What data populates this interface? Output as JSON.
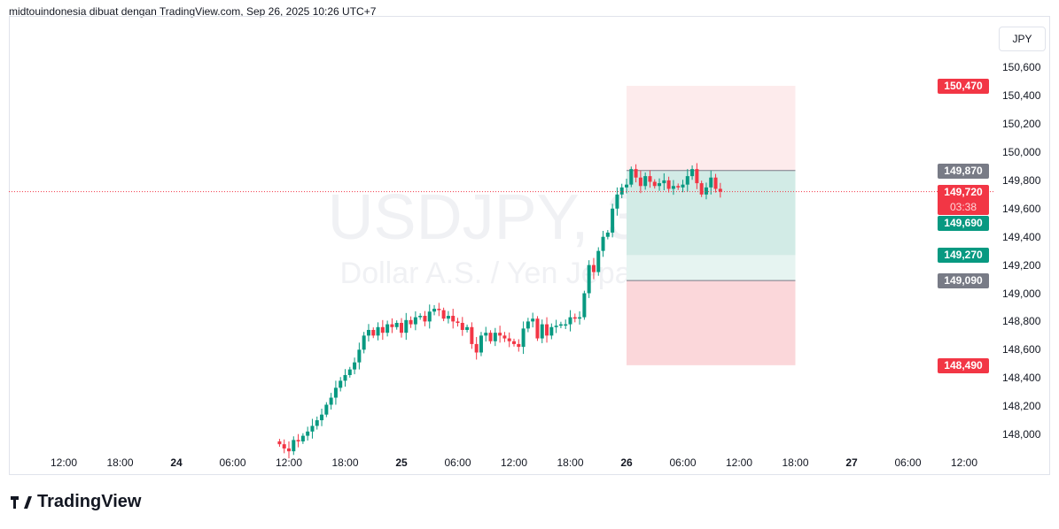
{
  "header": {
    "attribution": "midtouindonesia dibuat dengan TradingView.com, Sep 26, 2025 10:26 UTC+7"
  },
  "watermark": {
    "symbol": "USDJPY, 30",
    "description": "Dollar A.S. / Yen Jepang"
  },
  "currency_button": "JPY",
  "logo": "TradingView",
  "colors": {
    "up": "#089981",
    "down": "#f23645",
    "neutral_label": "#787b86",
    "profit_zone": "#d2ebe6",
    "loss_zone": "#fde2e4"
  },
  "chart_data": {
    "type": "candlestick",
    "symbol": "USDJPY",
    "interval": "30",
    "first_bar_time": "2025-09-24 11:00",
    "closes": [
      147930,
      147900,
      147880,
      147960,
      147950,
      147990,
      148020,
      148060,
      148100,
      148140,
      148210,
      148260,
      148330,
      148380,
      148420,
      148460,
      148510,
      148600,
      148700,
      148740,
      148700,
      148760,
      148720,
      148780,
      148760,
      148790,
      148720,
      148810,
      148780,
      148830,
      148840,
      148800,
      148870,
      148890,
      148880,
      148820,
      148840,
      148800,
      148790,
      148740,
      148760,
      148640,
      148580,
      148700,
      148720,
      148660,
      148720,
      148700,
      148680,
      148660,
      148640,
      148620,
      148750,
      148800,
      148820,
      148680,
      148780,
      148700,
      148760,
      148770,
      148780,
      148780,
      148830,
      148820,
      148830,
      149000,
      149200,
      149150,
      149300,
      149400,
      149430,
      149600,
      149700,
      149750,
      149770,
      149880,
      149820,
      149760,
      149830,
      149790,
      149760,
      149780,
      149800,
      149740,
      149760,
      149750,
      149770,
      149830,
      149880,
      149780,
      149700,
      149750,
      149820,
      149740,
      149720
    ],
    "y_ticks": [
      "150,600",
      "150,400",
      "150,200",
      "150,000",
      "149,800",
      "149,600",
      "149,400",
      "149,200",
      "149,000",
      "148,800",
      "148,600",
      "148,400",
      "148,200",
      "148,000"
    ],
    "y_tick_values": [
      150600,
      150400,
      150200,
      150000,
      149800,
      149600,
      149400,
      149200,
      149000,
      148800,
      148600,
      148400,
      148200,
      148000
    ],
    "x_ticks": [
      "12:00",
      "18:00",
      "24",
      "06:00",
      "12:00",
      "18:00",
      "25",
      "06:00",
      "12:00",
      "18:00",
      "26",
      "06:00",
      "12:00",
      "18:00",
      "27",
      "06:00",
      "12:00"
    ],
    "current_price": {
      "value": 149720,
      "label": "149,720",
      "countdown": "03:38"
    },
    "price_labels": [
      {
        "value": 150470,
        "label": "150,470",
        "kind": "down"
      },
      {
        "value": 149870,
        "label": "149,870",
        "kind": "neutral"
      },
      {
        "value": 149690,
        "label": "149,690",
        "kind": "up"
      },
      {
        "value": 149270,
        "label": "149,270",
        "kind": "up"
      },
      {
        "value": 149090,
        "label": "149,090",
        "kind": "neutral"
      },
      {
        "value": 148490,
        "label": "148,490",
        "kind": "down"
      }
    ],
    "position_tool": {
      "start": "2025-09-26 00:00",
      "end": "2025-09-26 18:00",
      "upper_target": 150470,
      "entry": 149870,
      "inner_level": 149270,
      "stop_line": 149090,
      "lower_target": 148490
    }
  }
}
